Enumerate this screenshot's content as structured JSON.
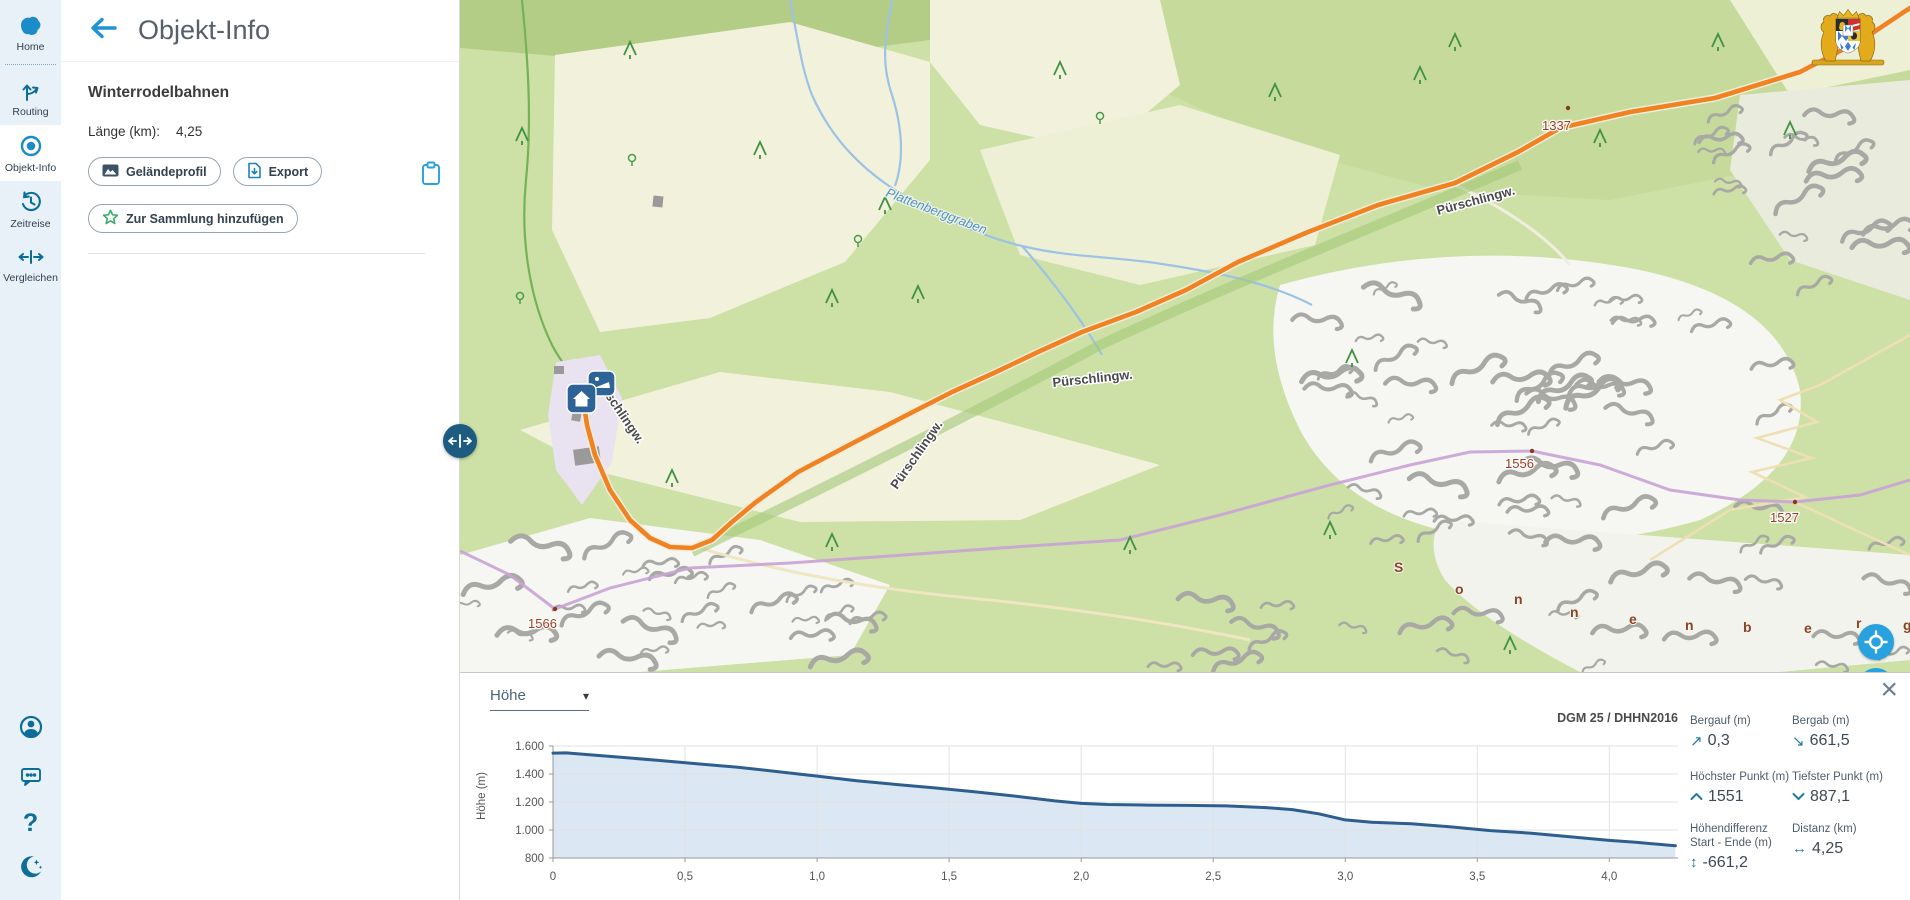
{
  "app": {
    "icons": {
      "close": "×",
      "caret": "▾",
      "uphill": "↗",
      "downhill": "↘",
      "updown": "↕",
      "leftright": "↔"
    }
  },
  "sidebar": {
    "items": [
      {
        "label": "Home",
        "icon": "bavaria-icon"
      },
      {
        "label": "Routing",
        "icon": "routing-icon"
      },
      {
        "label": "Objekt-Info",
        "icon": "object-info-icon",
        "active": true
      },
      {
        "label": "Zeitreise",
        "icon": "history-icon"
      },
      {
        "label": "Vergleichen",
        "icon": "compare-icon"
      }
    ],
    "help_glyph": "?",
    "bottom_icons": [
      "account-icon",
      "feedback-icon",
      "help-icon",
      "dark-mode-icon"
    ]
  },
  "panel": {
    "title": "Objekt-Info",
    "section_title": "Winterrodelbahnen",
    "length_label": "Länge (km):",
    "length_value": "4,25",
    "buttons": {
      "terrain_profile": "Geländeprofil",
      "export": "Export",
      "add_to_collection": "Zur Sammlung hinzufügen"
    }
  },
  "map": {
    "trail_label": "Pürschlingw.",
    "stream_label": "Plattenberggraben",
    "mountain_label": "Sonnenberg",
    "elevation_labels": [
      "1337",
      "1556",
      "1527",
      "1566"
    ],
    "route_color": "#f08222"
  },
  "chart_panel": {
    "mode_select_value": "Höhe",
    "source": "DGM 25 / DHHN2016",
    "stats": [
      {
        "label": "Bergauf (m)",
        "value": "0,3",
        "icon": "arrow-up-right"
      },
      {
        "label": "Bergab (m)",
        "value": "661,5",
        "icon": "arrow-down-right"
      },
      {
        "label": "Höchster Punkt (m)",
        "value": "1551",
        "icon": "chevron-up"
      },
      {
        "label": "Tiefster Punkt (m)",
        "value": "887,1",
        "icon": "chevron-down"
      },
      {
        "label": "Höhendifferenz Start - Ende (m)",
        "value": "-661,2",
        "icon": "arrow-up-down"
      },
      {
        "label": "Distanz (km)",
        "value": "4,25",
        "icon": "arrow-left-right"
      }
    ]
  },
  "chart_data": {
    "type": "area",
    "ylabel": "Höhe (m)",
    "x": [
      0,
      0.05,
      0.12,
      0.25,
      0.4,
      0.55,
      0.7,
      0.85,
      1.0,
      1.15,
      1.3,
      1.45,
      1.6,
      1.75,
      1.9,
      2.0,
      2.1,
      2.25,
      2.4,
      2.55,
      2.7,
      2.8,
      2.9,
      3.0,
      3.1,
      3.25,
      3.4,
      3.55,
      3.7,
      3.85,
      4.0,
      4.1,
      4.25
    ],
    "y": [
      1549,
      1551,
      1540,
      1521,
      1497,
      1472,
      1448,
      1417,
      1385,
      1352,
      1325,
      1300,
      1272,
      1242,
      1208,
      1190,
      1182,
      1178,
      1176,
      1172,
      1160,
      1146,
      1116,
      1072,
      1055,
      1044,
      1022,
      996,
      978,
      952,
      926,
      912,
      887
    ],
    "xticks": [
      "0",
      "0,5",
      "1,0",
      "1,5",
      "2,0",
      "2,5",
      "3,0",
      "3,5",
      "4,0"
    ],
    "xtick_values": [
      0,
      0.5,
      1,
      1.5,
      2,
      2.5,
      3,
      3.5,
      4
    ],
    "yticks": [
      "1.600",
      "1.400",
      "1.200",
      "1.000",
      "800"
    ],
    "ytick_values": [
      1600,
      1400,
      1200,
      1000,
      800
    ],
    "xlim": [
      0,
      4.26
    ],
    "ylim": [
      800,
      1600
    ],
    "grid": true,
    "line_color": "#2d5e8e",
    "fill_color": "#dbe7f2"
  }
}
